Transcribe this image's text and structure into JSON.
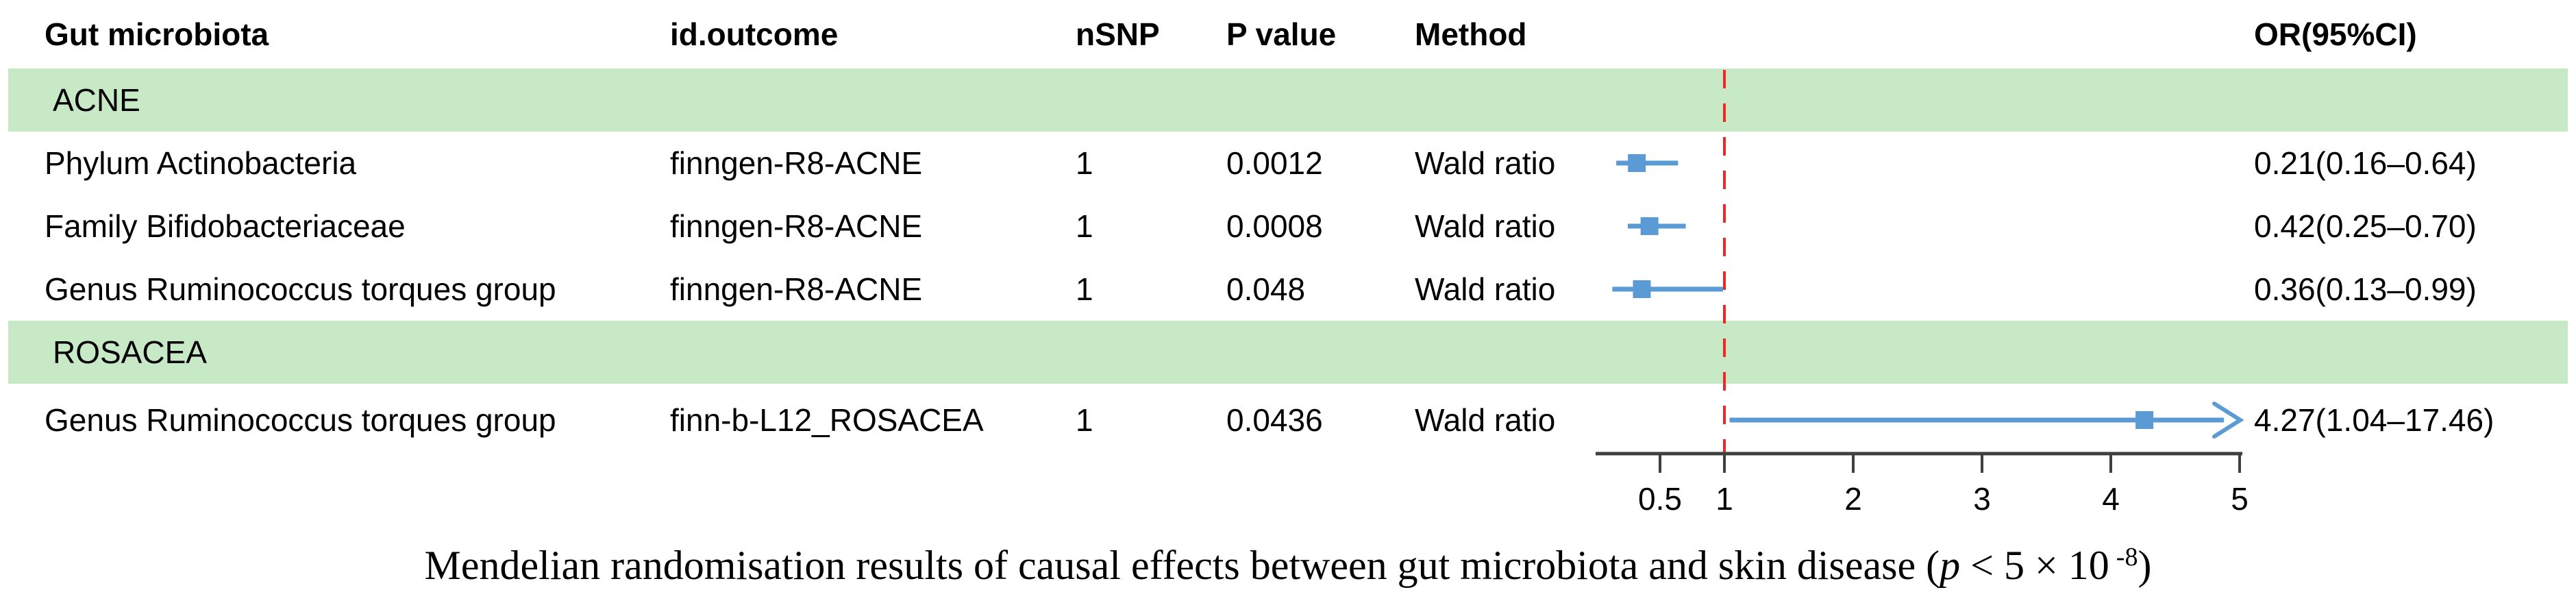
{
  "header": {
    "gut_microbiota": "Gut microbiota",
    "id_outcome": "id.outcome",
    "nsnp": "nSNP",
    "p_value": "P value",
    "method": "Method",
    "or_ci": "OR(95%CI)"
  },
  "groups": [
    {
      "label": "ACNE"
    },
    {
      "label": "ROSACEA"
    }
  ],
  "chart_data": {
    "type": "forest",
    "title": "",
    "xlabel": "",
    "x_ticks": [
      "0.5",
      "1",
      "2",
      "3",
      "4",
      "5"
    ],
    "x_tick_values": [
      0.5,
      1,
      2,
      3,
      4,
      5
    ],
    "x_range": [
      0,
      5.02
    ],
    "scale": "linear",
    "reference_line": 1,
    "grid": false,
    "rows": [
      {
        "group": "ACNE",
        "microbiota": "Phylum Actinobacteria",
        "outcome": "finngen-R8-ACNE",
        "nsnp": "1",
        "pvalue": "0.0012",
        "method": "Wald ratio",
        "or": 0.21,
        "ci_low": 0.16,
        "ci_high": 0.64,
        "or_text": "0.21(0.16–0.64)",
        "clipped": false
      },
      {
        "group": "ACNE",
        "microbiota": "Family Bifidobacteriaceae",
        "outcome": "finngen-R8-ACNE",
        "nsnp": "1",
        "pvalue": "0.0008",
        "method": "Wald ratio",
        "or": 0.42,
        "ci_low": 0.25,
        "ci_high": 0.7,
        "or_text": "0.42(0.25–0.70)",
        "clipped": false
      },
      {
        "group": "ACNE",
        "microbiota": "Genus Ruminococcus torques group",
        "outcome": "finngen-R8-ACNE",
        "nsnp": "1",
        "pvalue": "0.048",
        "method": "Wald ratio",
        "or": 0.36,
        "ci_low": 0.13,
        "ci_high": 0.99,
        "or_text": "0.36(0.13–0.99)",
        "clipped": false
      },
      {
        "group": "ROSACEA",
        "microbiota": "Genus Ruminococcus torques group",
        "outcome": "finn-b-L12_ROSACEA",
        "nsnp": "1",
        "pvalue": "0.0436",
        "method": "Wald ratio",
        "or": 4.27,
        "ci_low": 1.04,
        "ci_high": 17.46,
        "or_text": "4.27(1.04–17.46)",
        "clipped": true
      }
    ]
  },
  "caption": {
    "prefix": "Mendelian randomisation results of causal effects between gut microbiota and skin disease (",
    "p_symbol": "p",
    "mid": " < 5 × 10",
    "sup": "-8",
    "suffix": ")"
  },
  "colors": {
    "band_green": "#c7e9c6",
    "marker_blue": "#5b9bd5",
    "reference_red": "#ee2824",
    "axis": "#3f3f3f",
    "text": "#000000"
  }
}
